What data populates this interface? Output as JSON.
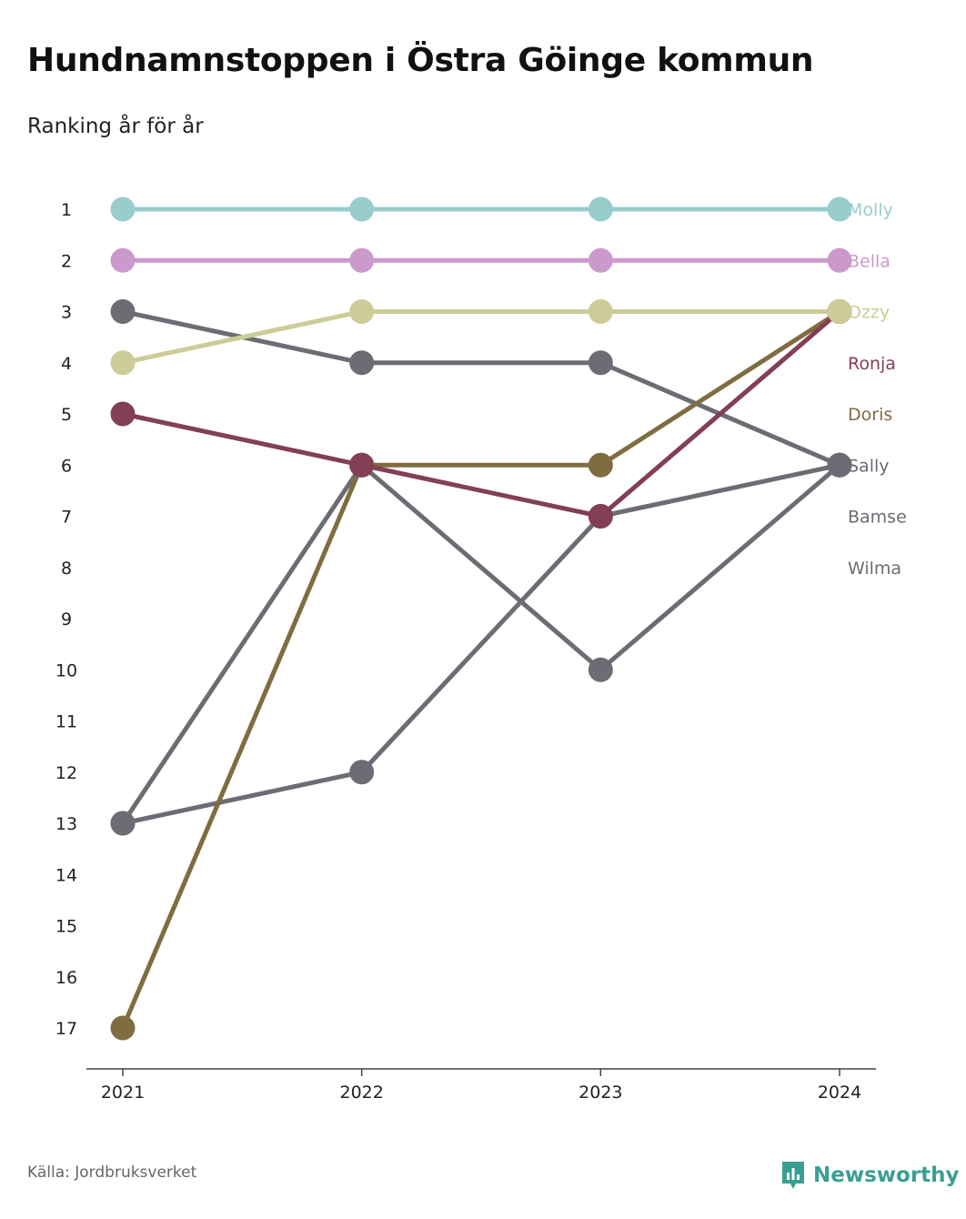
{
  "title": "Hundnamnstoppen i Östra Göinge kommun",
  "subtitle": "Ranking år för år",
  "source": "Källa: Jordbruksverket",
  "brand": {
    "name": "Newsworthy",
    "color": "#3a9f92",
    "icon": "newsworthy-logo-icon"
  },
  "chart_data": {
    "type": "line",
    "x": [
      "2021",
      "2022",
      "2023",
      "2024"
    ],
    "y_axis": {
      "ticks": [
        1,
        2,
        3,
        4,
        5,
        6,
        7,
        8,
        9,
        10,
        11,
        12,
        13,
        14,
        15,
        16,
        17
      ],
      "reversed": true,
      "ylim": [
        1,
        17
      ]
    },
    "grid": false,
    "legend": "right, labels at end of lines",
    "series": [
      {
        "name": "Molly",
        "color": "#99cccc",
        "values": [
          1,
          1,
          1,
          1
        ]
      },
      {
        "name": "Bella",
        "color": "#cc99cc",
        "values": [
          2,
          2,
          2,
          2
        ]
      },
      {
        "name": "Ozzy",
        "color": "#cccc99",
        "values": [
          4,
          3,
          3,
          3
        ]
      },
      {
        "name": "Ronja",
        "color": "#833f54",
        "values": [
          5,
          6,
          7,
          3
        ]
      },
      {
        "name": "Doris",
        "color": "#7f6c40",
        "values": [
          17,
          6,
          6,
          3
        ]
      },
      {
        "name": "Sally",
        "color": "#6d6c74",
        "values": [
          3,
          4,
          4,
          6
        ]
      },
      {
        "name": "Bamse",
        "color": "#6d6c74",
        "values": [
          13,
          6,
          10,
          6
        ]
      },
      {
        "name": "Wilma",
        "color": "#6d6c74",
        "values": [
          13,
          12,
          7,
          6
        ]
      }
    ]
  }
}
